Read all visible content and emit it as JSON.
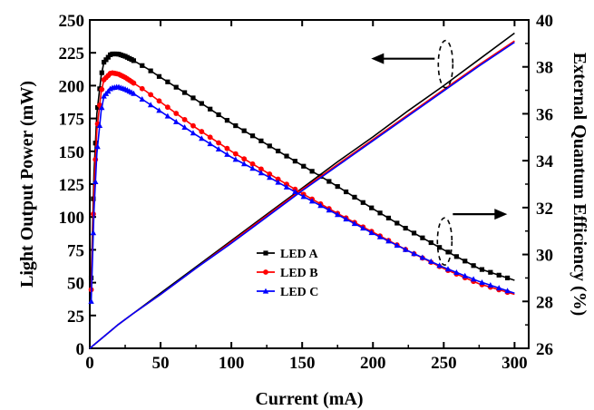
{
  "chart_data": {
    "type": "line",
    "xlabel": "Current (mA)",
    "ylabel_left": "Light Output Power (mW)",
    "ylabel_right": "External Quantum Efficiency (%)",
    "xlim": [
      0,
      310
    ],
    "ylim_left": [
      0,
      250
    ],
    "ylim_right": [
      26,
      40
    ],
    "x_ticks": [
      "0",
      "50",
      "100",
      "150",
      "200",
      "250",
      "300"
    ],
    "y_left_ticks": [
      "0",
      "25",
      "50",
      "75",
      "100",
      "125",
      "150",
      "175",
      "200",
      "225",
      "250"
    ],
    "y_right_ticks": [
      "26",
      "28",
      "30",
      "32",
      "34",
      "36",
      "38",
      "40"
    ],
    "grid": false,
    "legend_position": "center",
    "annotations": [
      {
        "type": "arrow-left",
        "meaning": "power curves read on left axis",
        "at_x": 250,
        "at_y_left": 215
      },
      {
        "type": "arrow-right",
        "meaning": "EQE curves read on right axis",
        "at_x": 250,
        "at_y_left": 80
      }
    ],
    "series": [
      {
        "name": "LED A",
        "color": "#000000",
        "marker": "square",
        "power": {
          "x": [
            0,
            10,
            20,
            30,
            50,
            75,
            100,
            125,
            150,
            175,
            200,
            225,
            250,
            275,
            300
          ],
          "y": [
            0,
            9,
            18,
            26,
            42,
            62,
            82,
            102,
            122,
            142,
            161,
            181,
            200,
            220,
            240
          ]
        },
        "eqe": {
          "x": [
            1,
            3,
            5,
            8,
            10,
            15,
            20,
            25,
            30,
            40,
            50,
            75,
            100,
            125,
            150,
            175,
            200,
            225,
            250,
            275,
            300
          ],
          "y": [
            29,
            33.5,
            36,
            37.6,
            38.2,
            38.55,
            38.55,
            38.45,
            38.3,
            37.95,
            37.55,
            36.6,
            35.6,
            34.7,
            33.8,
            32.9,
            31.95,
            31.05,
            30.2,
            29.4,
            28.9
          ]
        }
      },
      {
        "name": "LED B",
        "color": "#ff0000",
        "marker": "circle",
        "power": {
          "x": [
            0,
            10,
            20,
            30,
            50,
            75,
            100,
            125,
            150,
            175,
            200,
            225,
            250,
            275,
            300
          ],
          "y": [
            0,
            9,
            18,
            26,
            41,
            61,
            81,
            101,
            121,
            140,
            159,
            178,
            197,
            216,
            234
          ]
        },
        "eqe": {
          "x": [
            1,
            3,
            5,
            8,
            10,
            15,
            20,
            25,
            30,
            40,
            50,
            75,
            100,
            125,
            150,
            175,
            200,
            225,
            250,
            275,
            300
          ],
          "y": [
            28.5,
            32.8,
            35.3,
            36.9,
            37.45,
            37.75,
            37.7,
            37.55,
            37.35,
            36.95,
            36.5,
            35.4,
            34.4,
            33.5,
            32.6,
            31.75,
            30.95,
            30.15,
            29.4,
            28.75,
            28.3
          ]
        }
      },
      {
        "name": "LED C",
        "color": "#0000ff",
        "marker": "triangle",
        "power": {
          "x": [
            0,
            10,
            20,
            30,
            50,
            75,
            100,
            125,
            150,
            175,
            200,
            225,
            250,
            275,
            300
          ],
          "y": [
            0,
            9,
            18,
            26,
            41,
            61,
            80,
            100,
            120,
            139,
            158,
            177,
            196,
            215,
            233
          ]
        },
        "eqe": {
          "x": [
            1,
            3,
            5,
            8,
            10,
            15,
            20,
            25,
            30,
            40,
            50,
            75,
            100,
            125,
            150,
            175,
            200,
            225,
            250,
            275,
            300
          ],
          "y": [
            28,
            31.9,
            34.3,
            36.1,
            36.75,
            37.1,
            37.15,
            37.05,
            36.9,
            36.5,
            36.1,
            35.1,
            34.15,
            33.35,
            32.5,
            31.7,
            30.9,
            30.15,
            29.45,
            28.85,
            28.35
          ]
        }
      }
    ]
  }
}
